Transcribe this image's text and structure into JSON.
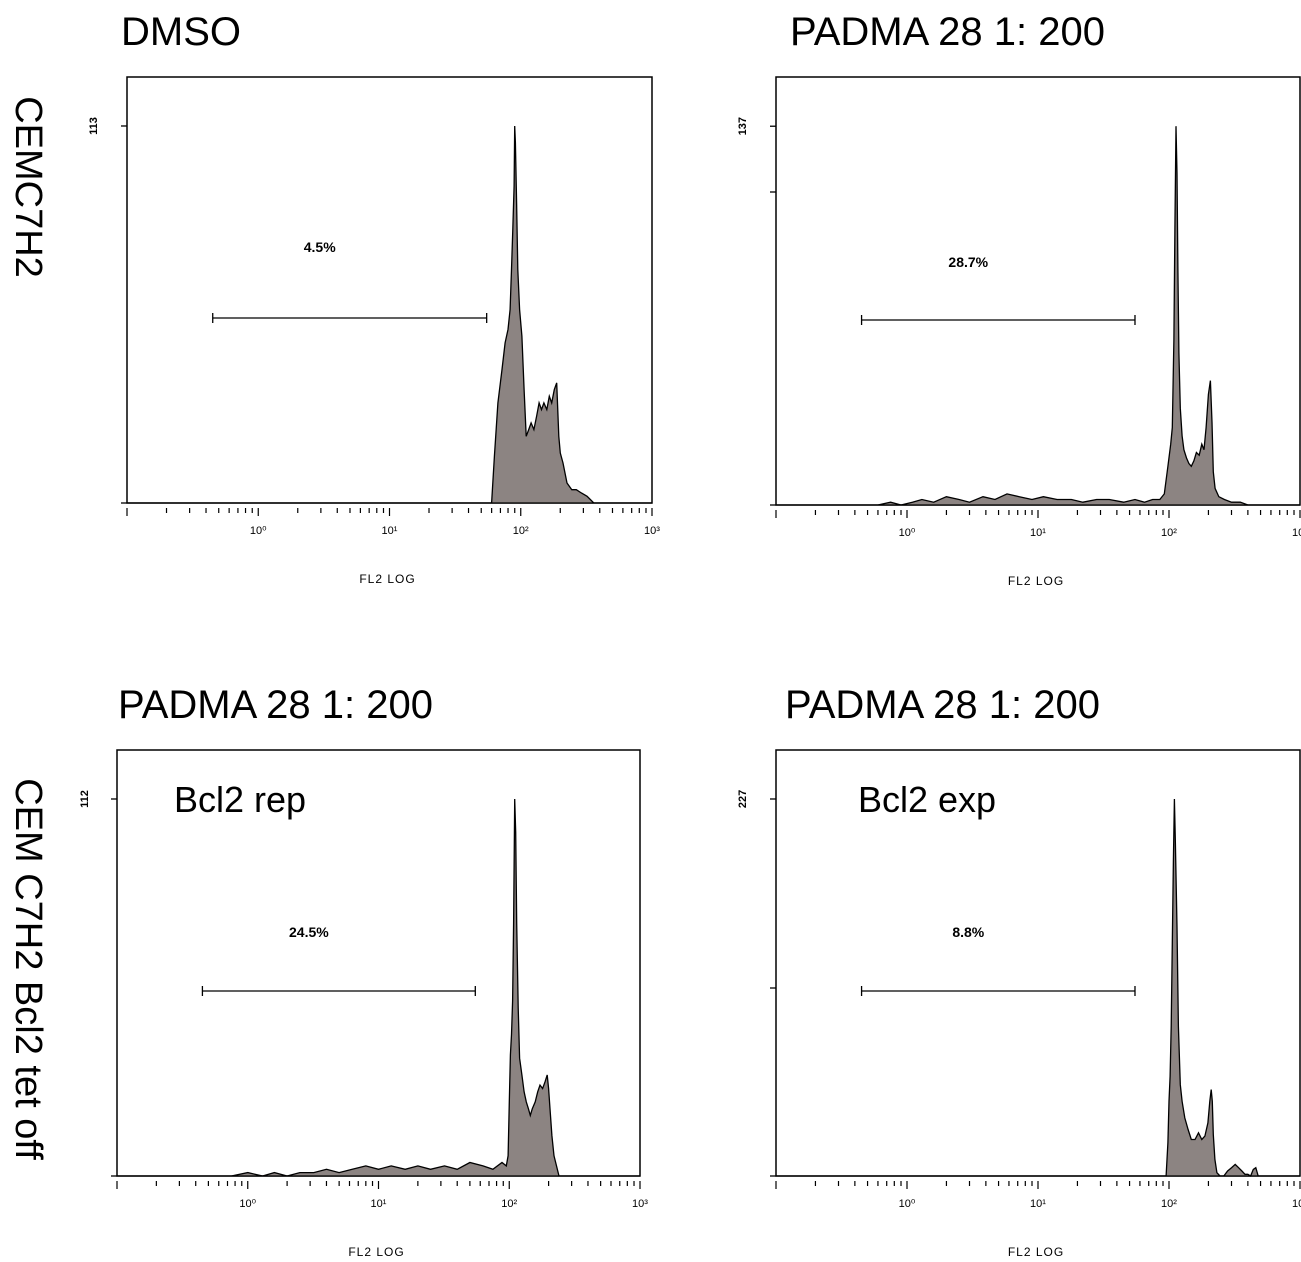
{
  "figure": {
    "row_labels": [
      "CEMC7H2",
      "CEM C7H2 Bcl2 tet off"
    ]
  },
  "chart_data": [
    {
      "type": "area",
      "title": "DMSO",
      "subtitle": "",
      "xlabel": "FL2 LOG",
      "xscale": "log",
      "xlim": [
        0.1,
        1000
      ],
      "x_tick_labels": [
        "10⁰",
        "10¹",
        "10²",
        "10³"
      ],
      "ylim": [
        0,
        113
      ],
      "y_max_label": "113",
      "gate_label": "4.5%",
      "gate_range": [
        0.45,
        55
      ],
      "fill_color": "#8c8482",
      "series": [
        {
          "x": [
            0.1,
            60,
            63,
            67,
            72,
            76,
            80,
            83,
            85,
            87,
            89,
            90,
            91,
            93,
            95,
            98,
            102,
            106,
            110,
            115,
            120,
            126,
            132,
            138,
            144,
            150,
            158,
            165,
            172,
            180,
            188,
            195,
            200,
            210,
            225,
            245,
            265,
            290,
            320,
            360,
            400,
            1000
          ],
          "y": [
            0,
            0,
            14,
            30,
            40,
            48,
            52,
            58,
            70,
            82,
            95,
            113,
            108,
            90,
            70,
            58,
            50,
            34,
            20,
            22,
            24,
            22,
            26,
            30,
            28,
            30,
            28,
            32,
            30,
            34,
            36,
            20,
            15,
            12,
            6,
            4,
            4,
            3,
            2,
            0,
            0,
            0
          ]
        }
      ]
    },
    {
      "type": "area",
      "title": "PADMA 28  1: 200",
      "subtitle": "",
      "xlabel": "FL2 LOG",
      "xscale": "log",
      "xlim": [
        0.1,
        1000
      ],
      "x_tick_labels": [
        "10⁰",
        "10¹",
        "10²",
        "10³"
      ],
      "ylim": [
        0,
        137
      ],
      "y_max_label": "137",
      "gate_label": "28.7%",
      "gate_range": [
        0.45,
        55
      ],
      "fill_color": "#8c8482",
      "series": [
        {
          "x": [
            0.1,
            0.6,
            0.75,
            0.9,
            1.1,
            1.3,
            1.6,
            2.0,
            2.5,
            3.0,
            3.8,
            4.7,
            5.8,
            7.2,
            9.0,
            11,
            14,
            18,
            22,
            28,
            35,
            45,
            55,
            65,
            75,
            85,
            92,
            98,
            103,
            106,
            109,
            111,
            113,
            115,
            117,
            119,
            122,
            126,
            130,
            136,
            142,
            148,
            155,
            162,
            170,
            178,
            185,
            192,
            200,
            207,
            213,
            218,
            225,
            240,
            265,
            300,
            350,
            400,
            1000
          ],
          "y": [
            0,
            0,
            1,
            0,
            1,
            2,
            1,
            3,
            2,
            1,
            3,
            2,
            4,
            3,
            2,
            3,
            2,
            2,
            1,
            2,
            2,
            1,
            2,
            1,
            2,
            2,
            4,
            14,
            22,
            28,
            60,
            100,
            137,
            120,
            85,
            55,
            35,
            25,
            20,
            17,
            15,
            14,
            16,
            19,
            18,
            22,
            20,
            28,
            40,
            45,
            30,
            12,
            6,
            3,
            2,
            1,
            1,
            0,
            0
          ]
        }
      ]
    },
    {
      "type": "area",
      "title": "PADMA 28 1: 200",
      "subtitle": "Bcl2 rep",
      "xlabel": "FL2 LOG",
      "xscale": "log",
      "xlim": [
        0.1,
        1000
      ],
      "x_tick_labels": [
        "10⁰",
        "10¹",
        "10²",
        "10³"
      ],
      "ylim": [
        0,
        112
      ],
      "y_max_label": "112",
      "gate_label": "24.5%",
      "gate_range": [
        0.45,
        55
      ],
      "fill_color": "#8c8482",
      "series": [
        {
          "x": [
            0.1,
            0.75,
            1.0,
            1.3,
            1.6,
            2.0,
            2.5,
            3.2,
            4.0,
            5.0,
            6.3,
            8.0,
            10,
            12.5,
            16,
            20,
            25,
            32,
            40,
            50,
            63,
            75,
            88,
            95,
            98,
            100,
            102,
            104,
            106,
            108,
            110,
            112,
            114,
            117,
            120,
            125,
            130,
            135,
            140,
            145,
            150,
            158,
            165,
            172,
            180,
            188,
            195,
            200,
            205,
            212,
            220,
            240,
            1000
          ],
          "y": [
            0,
            0,
            1,
            0,
            1,
            0,
            1,
            1,
            2,
            1,
            2,
            3,
            2,
            3,
            2,
            3,
            2,
            3,
            2,
            4,
            3,
            2,
            4,
            3,
            6,
            22,
            36,
            42,
            52,
            75,
            112,
            102,
            75,
            50,
            35,
            30,
            25,
            22,
            20,
            18,
            20,
            22,
            25,
            27,
            26,
            28,
            30,
            26,
            20,
            12,
            6,
            0,
            0
          ]
        }
      ]
    },
    {
      "type": "area",
      "title": "PADMA 28 1: 200",
      "subtitle": "Bcl2 exp",
      "xlabel": "FL2 LOG",
      "xscale": "log",
      "xlim": [
        0.1,
        1000
      ],
      "x_tick_labels": [
        "10⁰",
        "10¹",
        "10²",
        "10³"
      ],
      "ylim": [
        0,
        227
      ],
      "y_max_label": "227",
      "gate_label": "8.8%",
      "gate_range": [
        0.45,
        55
      ],
      "fill_color": "#8c8482",
      "series": [
        {
          "x": [
            0.1,
            95,
            98,
            100,
            102,
            104,
            106,
            108,
            110,
            112,
            115,
            118,
            122,
            126,
            132,
            140,
            148,
            158,
            168,
            178,
            188,
            198,
            205,
            210,
            214,
            218,
            224,
            232,
            245,
            262,
            280,
            300,
            320,
            340,
            360,
            380,
            400,
            420,
            440,
            460,
            480,
            1000
          ],
          "y": [
            0,
            0,
            20,
            45,
            60,
            90,
            140,
            190,
            227,
            200,
            150,
            90,
            55,
            45,
            35,
            28,
            22,
            22,
            26,
            22,
            24,
            32,
            45,
            52,
            45,
            25,
            10,
            2,
            0,
            0,
            3,
            5,
            7,
            5,
            3,
            1,
            1,
            0,
            4,
            5,
            0,
            0
          ]
        }
      ]
    }
  ]
}
